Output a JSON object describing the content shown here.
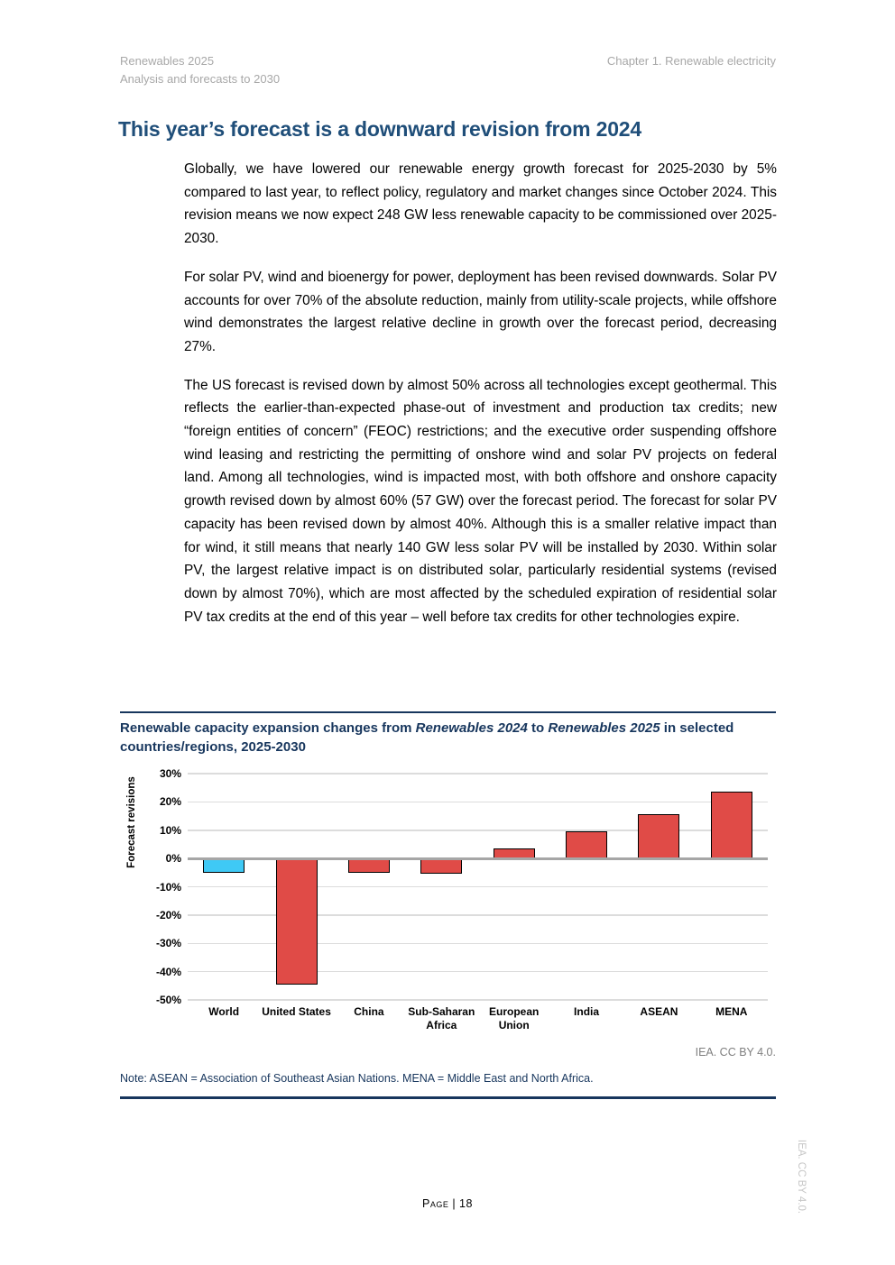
{
  "page": {
    "header": {
      "left_line1": "Renewables 2025",
      "left_line2": "Analysis and forecasts to 2030",
      "right": "Chapter 1. Renewable electricity"
    },
    "heading": "This year’s forecast is a downward revision from 2024",
    "paragraphs": [
      "Globally, we have lowered our renewable energy growth forecast for 2025-2030 by 5% compared to last year, to reflect policy, regulatory and market changes since October 2024. This revision means we now expect 248 GW less renewable capacity to be commissioned over 2025-2030.",
      "For solar PV, wind and bioenergy for power, deployment has been revised downwards. Solar PV accounts for over 70% of the absolute reduction, mainly from utility-scale projects, while offshore wind demonstrates the largest relative decline in growth over the forecast period, decreasing 27%.",
      "The US forecast is revised down by almost 50% across all technologies except geothermal. This reflects the earlier-than-expected phase-out of investment and production tax credits; new “foreign entities of concern” (FEOC) restrictions; and the executive order suspending offshore wind leasing and restricting the permitting of onshore wind and solar PV projects on federal land. Among all technologies, wind is impacted most, with both offshore and onshore capacity growth revised down by almost 60% (57 GW) over the forecast period. The forecast for solar PV capacity has been revised down by almost 40%. Although this is a smaller relative impact than for wind, it still means that nearly 140 GW less solar PV will be installed by 2030. Within solar PV, the largest relative impact is on distributed solar, particularly residential systems (revised down by almost 70%), which are most affected by the scheduled expiration of residential solar PV tax credits at the end of this year – well before tax credits for other technologies expire."
    ],
    "figure": {
      "title_part1": "Renewable capacity expansion changes from ",
      "title_italic1": "Renewables 2024",
      "title_part2": " to ",
      "title_italic2": "Renewables 2025",
      "title_part3": " in selected countries/regions, 2025-2030",
      "source": "IEA. CC BY 4.0.",
      "note": "Note: ASEAN = Association of Southeast Asian Nations. MENA = Middle East and North Africa."
    },
    "footer": {
      "page_label": "Page | 18",
      "side_text": "IEA. CC BY 4.0."
    }
  },
  "chart_data": {
    "type": "bar",
    "categories": [
      "World",
      "United States",
      "China",
      "Sub-Saharan Africa",
      "European Union",
      "India",
      "ASEAN",
      "MENA"
    ],
    "values": [
      -5,
      -44.5,
      -5,
      -5.5,
      3.5,
      9.5,
      15.5,
      23.5
    ],
    "bar_colors": [
      "#3fc9f5",
      "#e04b47",
      "#e04b47",
      "#e04b47",
      "#e04b47",
      "#e04b47",
      "#e04b47",
      "#e04b47"
    ],
    "title": "Renewable capacity expansion changes from Renewables 2024 to Renewables 2025 in selected countries/regions, 2025-2030",
    "xlabel": "",
    "ylabel": "Forecast revisions",
    "ylim": [
      -50,
      30
    ],
    "ytick_step": 10,
    "ytick_suffix": "%",
    "grid": true,
    "legend": false
  },
  "colors": {
    "heading_blue": "#1f4e79",
    "figure_navy": "#17365d",
    "gridline": "#dcdcdc",
    "zero_line": "#a6a6a6",
    "world_bar": "#3fc9f5",
    "other_bar": "#e04b47"
  }
}
